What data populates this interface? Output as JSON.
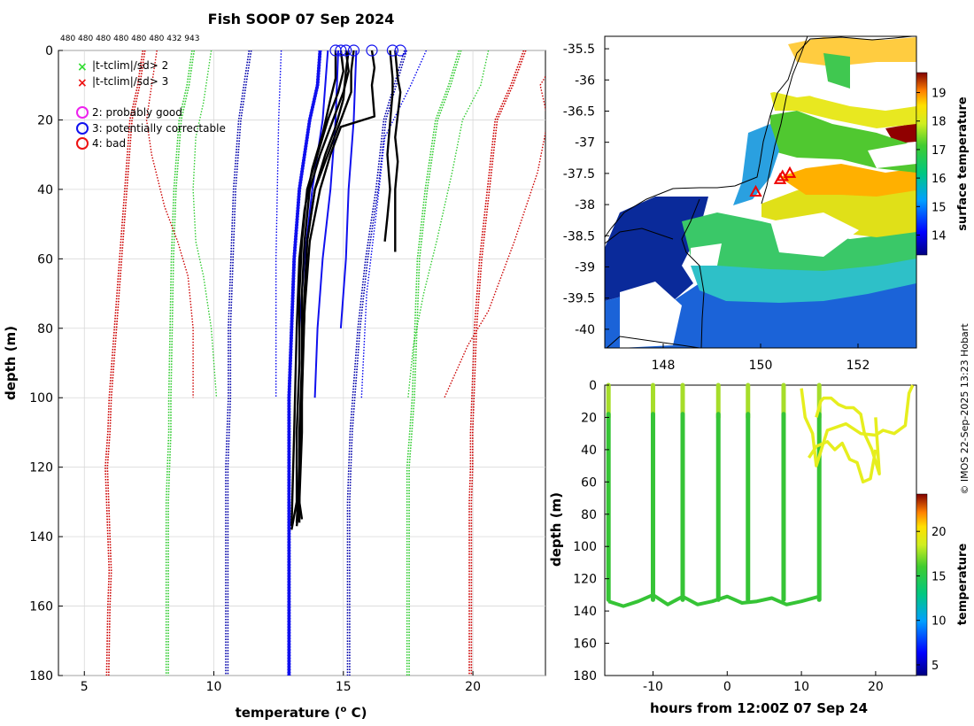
{
  "title": "Fish SOOP 07 Sep 2024",
  "credit": "© IMOS 22-Sep-2025 13:23 Hobart",
  "chart_data": [
    {
      "id": "profile",
      "type": "line",
      "xlabel_main": "temperature (",
      "xlabel_sup": "o",
      "xlabel_end": " C)",
      "ylabel": "depth (m)",
      "xlim": [
        4,
        22.8
      ],
      "ylim": [
        180,
        0
      ],
      "xticks": [
        5,
        10,
        15,
        20
      ],
      "yticks": [
        0,
        20,
        40,
        60,
        80,
        100,
        120,
        140,
        160,
        180
      ],
      "top_depth_labels": "480 480 480 480 480 480 432 943",
      "legend": [
        {
          "label": "|t-tclim|/sd> 2",
          "marker": "x",
          "color": "#33dd33"
        },
        {
          "label": "|t-tclim|/sd> 3",
          "marker": "x",
          "color": "#ee1111"
        },
        {
          "label": "2: probably good",
          "marker": "o",
          "color": "#ee22ee"
        },
        {
          "label": "3: potentially correctable",
          "marker": "o",
          "color": "#1111ee"
        },
        {
          "label": "4: bad",
          "marker": "o",
          "color": "#ee1111"
        }
      ],
      "climatology_long": [
        {
          "name": "clim-3sd-low",
          "color": "#cc0000",
          "x": [
            7.3,
            7.1,
            6.8,
            6.6,
            6.4,
            6.2,
            6.0,
            5.95,
            5.85,
            5.9,
            5.95,
            6.0,
            5.95,
            5.9
          ],
          "depth": [
            0,
            10,
            20,
            40,
            60,
            80,
            100,
            110,
            120,
            130,
            140,
            150,
            160,
            180
          ]
        },
        {
          "name": "clim-2sd-low",
          "color": "#33cc33",
          "x": [
            9.2,
            9.0,
            8.7,
            8.5,
            8.4,
            8.35,
            8.3,
            8.3,
            8.25,
            8.2,
            8.2,
            8.2,
            8.2,
            8.2
          ],
          "depth": [
            0,
            10,
            20,
            40,
            60,
            80,
            100,
            110,
            120,
            130,
            140,
            150,
            160,
            180
          ]
        },
        {
          "name": "clim-1sd-low",
          "color": "#0000aa",
          "x": [
            11.4,
            11.2,
            11.0,
            10.8,
            10.7,
            10.6,
            10.6,
            10.55,
            10.5,
            10.5,
            10.5,
            10.5,
            10.5,
            10.5
          ],
          "depth": [
            0,
            10,
            20,
            40,
            60,
            80,
            100,
            110,
            120,
            130,
            140,
            150,
            160,
            180
          ]
        },
        {
          "name": "clim-mean",
          "color": "#0000ee",
          "x": [
            14.1,
            14.0,
            13.7,
            13.3,
            13.1,
            13.0,
            12.9,
            12.9,
            12.9,
            12.9,
            12.9,
            12.9,
            12.9,
            12.9
          ],
          "depth": [
            0,
            10,
            20,
            40,
            60,
            80,
            100,
            110,
            120,
            130,
            140,
            150,
            160,
            180
          ]
        },
        {
          "name": "clim-1sd-high",
          "color": "#0000aa",
          "x": [
            17.4,
            17.0,
            16.6,
            16.3,
            15.9,
            15.6,
            15.4,
            15.3,
            15.25,
            15.2,
            15.2,
            15.2,
            15.2,
            15.2
          ],
          "depth": [
            0,
            10,
            20,
            40,
            60,
            80,
            100,
            110,
            120,
            130,
            140,
            150,
            160,
            180
          ]
        },
        {
          "name": "clim-2sd-high",
          "color": "#33cc33",
          "x": [
            19.5,
            19.1,
            18.6,
            18.2,
            17.9,
            17.8,
            17.7,
            17.6,
            17.5,
            17.5,
            17.5,
            17.5,
            17.5,
            17.5
          ],
          "depth": [
            0,
            10,
            20,
            40,
            60,
            80,
            100,
            110,
            120,
            130,
            140,
            150,
            160,
            180
          ]
        },
        {
          "name": "clim-3sd-high",
          "color": "#cc0000",
          "x": [
            22.0,
            21.5,
            20.9,
            20.6,
            20.3,
            20.1,
            20.0,
            19.95,
            19.95,
            19.9,
            19.9,
            19.9,
            19.9,
            19.9
          ],
          "depth": [
            0,
            10,
            20,
            40,
            60,
            80,
            100,
            110,
            120,
            130,
            140,
            150,
            160,
            180
          ]
        }
      ],
      "climatology_short": [
        {
          "name": "short-3sd-low",
          "color": "#cc0000",
          "x": [
            7.8,
            7.6,
            7.4,
            7.6,
            8.1,
            8.6,
            9.0,
            9.2,
            9.2
          ],
          "depth": [
            0,
            10,
            20,
            30,
            45,
            55,
            65,
            80,
            100
          ]
        },
        {
          "name": "short-2sd-low",
          "color": "#33cc33",
          "x": [
            9.9,
            9.6,
            9.3,
            9.2,
            9.3,
            9.6,
            9.9,
            10.1
          ],
          "depth": [
            0,
            15,
            25,
            40,
            55,
            65,
            80,
            100
          ]
        },
        {
          "name": "short-2sd-high",
          "color": "#33cc33",
          "x": [
            20.6,
            20.3,
            19.6,
            19.2,
            18.6,
            18.1,
            17.7,
            17.5
          ],
          "depth": [
            0,
            10,
            20,
            35,
            55,
            70,
            85,
            100
          ]
        },
        {
          "name": "short-3sd-high",
          "color": "#cc0000",
          "x": [
            23.3,
            23.0,
            22.6,
            22.9,
            22.5,
            21.6,
            20.6,
            19.8,
            18.9
          ],
          "depth": [
            0,
            5,
            10,
            20,
            35,
            55,
            75,
            85,
            100
          ]
        },
        {
          "name": "short-1sd-low",
          "color": "#0000ee",
          "x": [
            12.6,
            12.5,
            12.45,
            12.4,
            12.4,
            12.4
          ],
          "depth": [
            0,
            20,
            40,
            60,
            80,
            100
          ]
        },
        {
          "name": "short-1sd-high",
          "color": "#0000ee",
          "x": [
            18.2,
            17.6,
            16.6,
            16.3,
            15.9,
            15.7
          ],
          "depth": [
            0,
            10,
            25,
            45,
            70,
            100
          ]
        }
      ],
      "solid_blue": [
        {
          "x": [
            14.8,
            14.7,
            14.5,
            14.2,
            14.0,
            13.9
          ],
          "depth": [
            0,
            20,
            40,
            60,
            80,
            100
          ]
        },
        {
          "x": [
            15.5,
            15.4,
            15.2,
            15.1,
            14.9
          ],
          "depth": [
            0,
            20,
            40,
            60,
            80
          ]
        },
        {
          "x": [
            14.4,
            14.2,
            13.8,
            13.5,
            13.3
          ],
          "depth": [
            0,
            20,
            40,
            60,
            80
          ]
        }
      ],
      "casts": [
        {
          "x": [
            14.9,
            15.0,
            14.8,
            14.4,
            14.0,
            13.6,
            13.4,
            13.3,
            13.3,
            13.2,
            13.2,
            13.0
          ],
          "depth": [
            0,
            6,
            12,
            20,
            30,
            40,
            55,
            70,
            90,
            110,
            130,
            138
          ]
        },
        {
          "x": [
            15.1,
            15.2,
            15.0,
            14.6,
            14.1,
            13.7,
            13.5,
            13.4,
            13.4,
            13.3,
            13.3,
            13.2
          ],
          "depth": [
            0,
            6,
            12,
            20,
            30,
            40,
            55,
            70,
            90,
            110,
            130,
            137
          ]
        },
        {
          "x": [
            15.4,
            15.3,
            15.3,
            14.8,
            14.3,
            13.9,
            13.6,
            13.5,
            13.4,
            13.4,
            13.3,
            13.4
          ],
          "depth": [
            0,
            6,
            12,
            22,
            32,
            40,
            55,
            70,
            90,
            110,
            130,
            135
          ]
        },
        {
          "x": [
            16.1,
            16.2,
            16.1,
            16.2,
            14.9,
            14.5,
            14.1,
            13.7,
            13.5,
            13.4,
            13.3,
            13.2
          ],
          "depth": [
            0,
            5,
            10,
            19,
            22,
            30,
            40,
            55,
            75,
            100,
            120,
            136
          ]
        },
        {
          "x": [
            15.2,
            15.1,
            15.0,
            14.7,
            14.3,
            13.9,
            13.6,
            13.5,
            13.4,
            13.3,
            13.3
          ],
          "depth": [
            0,
            6,
            14,
            22,
            30,
            40,
            55,
            75,
            95,
            115,
            136
          ]
        },
        {
          "x": [
            17.0,
            17.1,
            17.2,
            17.0,
            17.1,
            17.0,
            17.0,
            17.0,
            17.0
          ],
          "depth": [
            0,
            8,
            12,
            25,
            32,
            40,
            48,
            55,
            58
          ]
        },
        {
          "x": [
            16.8,
            16.9,
            16.9,
            16.7,
            16.8,
            16.7,
            16.6
          ],
          "depth": [
            0,
            8,
            12,
            30,
            40,
            48,
            55
          ]
        },
        {
          "x": [
            14.7,
            14.7,
            14.5,
            14.2,
            13.8,
            13.5,
            13.3,
            13.2,
            13.1,
            13.0
          ],
          "depth": [
            0,
            8,
            14,
            24,
            34,
            46,
            60,
            80,
            110,
            137
          ]
        }
      ],
      "flag_circles": [
        {
          "x": 14.7,
          "depth": 0
        },
        {
          "x": 14.9,
          "depth": 0
        },
        {
          "x": 15.1,
          "depth": 0
        },
        {
          "x": 15.4,
          "depth": 0
        },
        {
          "x": 16.1,
          "depth": 0
        },
        {
          "x": 16.9,
          "depth": 0
        },
        {
          "x": 17.2,
          "depth": 0
        }
      ]
    },
    {
      "id": "map",
      "type": "heatmap",
      "colorbar_label": "surface temperature",
      "colorbar_ticks": [
        14,
        15,
        16,
        17,
        18,
        19
      ],
      "colorbar_range": [
        13.3,
        19.7
      ],
      "xlim": [
        146.8,
        153.2
      ],
      "ylim": [
        -40.3,
        -35.3
      ],
      "xticks": [
        148,
        150,
        152
      ],
      "yticks": [
        -35.5,
        -36,
        -36.5,
        -37,
        -37.5,
        -38,
        -38.5,
        -39,
        -39.5,
        -40
      ],
      "ytick_labels": [
        "-35.5",
        "-36",
        "-36.5",
        "-37",
        "-37.5",
        "-38",
        "-38.5",
        "-39",
        "-39.5",
        "-40"
      ],
      "markers": [
        {
          "lon": 149.9,
          "lat": -37.8
        },
        {
          "lon": 150.4,
          "lat": -37.6
        },
        {
          "lon": 150.45,
          "lat": -37.55
        },
        {
          "lon": 150.6,
          "lat": -37.5
        }
      ]
    },
    {
      "id": "timeseries",
      "type": "scatter",
      "xlabel": "hours from 12:00Z 07 Sep 24",
      "ylabel": "depth (m)",
      "colorbar_label": "temperature",
      "colorbar_ticks": [
        5,
        10,
        15,
        20
      ],
      "colorbar_range": [
        3.8,
        24.2
      ],
      "xlim": [
        -16.5,
        25.5
      ],
      "ylim": [
        180,
        0
      ],
      "xticks": [
        -10,
        0,
        10,
        20
      ],
      "yticks": [
        0,
        20,
        40,
        60,
        80,
        100,
        120,
        140,
        160,
        180
      ],
      "casts_hours": [
        -16,
        -10,
        -6,
        -1.2,
        2.8,
        7.6,
        12.4
      ],
      "bottom_depth": 133,
      "bottom_track_hours": [
        -16,
        -14,
        -12,
        -10,
        -8,
        -6,
        -4,
        -2,
        0,
        2,
        4,
        6,
        8,
        10,
        12.4
      ],
      "bottom_track_depth": [
        134,
        137,
        134,
        130,
        136,
        131,
        136,
        134,
        131,
        135,
        134,
        132,
        136,
        134,
        131
      ],
      "yellow_tows": [
        {
          "hours": [
            10.0,
            10.5,
            11.5,
            12.0,
            13.5,
            16,
            18,
            20,
            21,
            22.5,
            24.0,
            24.5,
            25.0
          ],
          "depth": [
            2,
            20,
            30,
            50,
            28,
            24,
            30,
            31,
            28,
            30,
            25,
            5,
            0
          ]
        },
        {
          "hours": [
            12.0,
            12.6,
            13.0,
            14.0,
            15.0,
            16,
            17,
            18,
            18.5,
            19.5,
            20.5,
            20.0
          ],
          "depth": [
            20,
            10,
            8,
            8,
            12,
            14,
            14,
            18,
            30,
            40,
            55,
            20
          ]
        },
        {
          "hours": [
            11.0,
            12.0,
            13.5,
            14.5,
            15.5,
            16.5,
            17.5,
            18.3,
            19.3,
            20.0
          ],
          "depth": [
            45,
            38,
            35,
            40,
            36,
            46,
            48,
            60,
            58,
            40
          ]
        }
      ]
    }
  ]
}
